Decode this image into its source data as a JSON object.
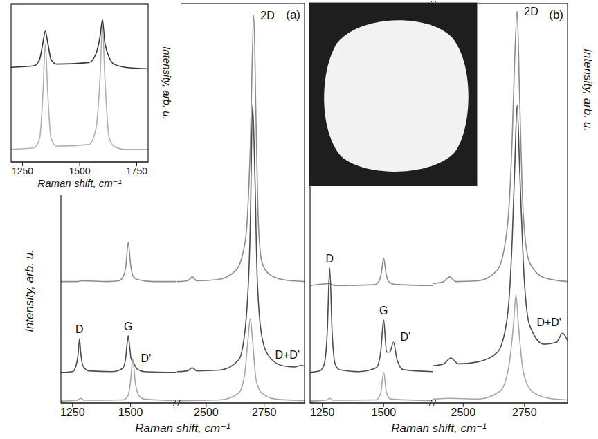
{
  "chart_data": [
    {
      "type": "line",
      "title": "(a)",
      "x_label": "Raman shift, cm⁻¹",
      "y_label": "Intensity, arb. u.",
      "xlim": [
        [
          1200,
          1700
        ],
        [
          2375,
          2925
        ]
      ],
      "xticks": [
        [
          1250,
          1500
        ],
        [
          2500,
          2750
        ]
      ],
      "ylim": [
        0,
        10.2
      ],
      "tick_labels": "x",
      "series": [
        {
          "color": "#8c8c8c",
          "x": [
            1200,
            1270,
            1290,
            1400,
            1450,
            1470,
            1480,
            1490,
            1500,
            1510,
            1530,
            1600,
            1700,
            2375,
            2420,
            2440,
            2460,
            2550,
            2630,
            2670,
            2690,
            2705,
            2715,
            2725,
            2740,
            2770,
            2830,
            2925
          ],
          "values": [
            3.1,
            3.1,
            3.12,
            3.1,
            3.12,
            3.25,
            3.5,
            4.1,
            3.55,
            3.25,
            3.15,
            3.1,
            3.1,
            3.1,
            3.12,
            3.22,
            3.12,
            3.15,
            3.4,
            4.2,
            6.5,
            9.9,
            7.2,
            4.6,
            3.6,
            3.3,
            3.15,
            3.1
          ],
          "annotations": [
            {
              "text": "2D",
              "x": 2705
            }
          ]
        },
        {
          "color": "#4d4d4d",
          "x": [
            1200,
            1250,
            1265,
            1275,
            1280,
            1285,
            1295,
            1320,
            1420,
            1465,
            1478,
            1485,
            1490,
            1495,
            1503,
            1515,
            1530,
            1560,
            1700,
            2375,
            2420,
            2440,
            2460,
            2560,
            2640,
            2670,
            2690,
            2700,
            2710,
            2720,
            2740,
            2770,
            2830,
            2880,
            2910,
            2925
          ],
          "values": [
            0.78,
            0.8,
            0.95,
            1.3,
            1.64,
            1.3,
            0.95,
            0.82,
            0.8,
            0.88,
            1.1,
            1.5,
            1.72,
            1.5,
            1.12,
            1.0,
            0.86,
            0.8,
            0.78,
            0.8,
            0.82,
            0.9,
            0.82,
            0.84,
            1.1,
            2.0,
            4.5,
            7.6,
            5.8,
            3.2,
            1.7,
            1.2,
            0.95,
            0.92,
            0.96,
            0.94
          ],
          "annotations": [
            {
              "text": "D",
              "x": 1280
            },
            {
              "text": "G",
              "x": 1490
            },
            {
              "text": "D'",
              "x": 1515
            },
            {
              "text": "D+D'",
              "x": 2910
            }
          ]
        },
        {
          "color": "#a6a6a6",
          "x": [
            1200,
            1270,
            1285,
            1300,
            1470,
            1490,
            1500,
            1510,
            1520,
            1535,
            1560,
            1700,
            2375,
            2560,
            2640,
            2665,
            2680,
            2690,
            2700,
            2715,
            2740,
            2800,
            2925
          ],
          "values": [
            0.05,
            0.07,
            0.12,
            0.07,
            0.08,
            0.2,
            0.55,
            1.12,
            0.55,
            0.2,
            0.1,
            0.06,
            0.06,
            0.08,
            0.25,
            0.7,
            1.6,
            2.15,
            1.6,
            0.6,
            0.25,
            0.1,
            0.06
          ]
        }
      ]
    },
    {
      "type": "line",
      "x_label": "Raman shift, cm⁻¹",
      "y_label": "Intensity, arb. u.",
      "xlim": [
        1200,
        1800
      ],
      "xticks": [
        1250,
        1500,
        1750
      ],
      "ylim": [
        0,
        10
      ],
      "tick_labels": "x",
      "series": [
        {
          "color": "#333333",
          "x": [
            1200,
            1300,
            1325,
            1340,
            1350,
            1360,
            1375,
            1400,
            1540,
            1570,
            1590,
            1600,
            1610,
            1620,
            1630,
            1650,
            1700,
            1800
          ],
          "values": [
            6.0,
            6.1,
            6.5,
            7.6,
            8.3,
            7.6,
            6.5,
            6.2,
            6.3,
            6.8,
            8.0,
            9.0,
            7.6,
            7.0,
            6.6,
            6.2,
            6.0,
            5.9
          ]
        },
        {
          "color": "#b0b0b0",
          "x": [
            1200,
            1300,
            1325,
            1340,
            1350,
            1360,
            1375,
            1400,
            1540,
            1570,
            1590,
            1600,
            1610,
            1630,
            1650,
            1700,
            1800
          ],
          "values": [
            0.8,
            0.9,
            1.5,
            4.5,
            7.5,
            4.5,
            1.5,
            1.0,
            1.1,
            2.0,
            5.5,
            8.7,
            5.5,
            1.5,
            1.0,
            0.8,
            0.8
          ]
        }
      ]
    },
    {
      "type": "line",
      "title": "(b)",
      "x_label": "Raman shift, cm⁻¹",
      "y_label": "Intensity, arb. u.",
      "xlim": [
        [
          1200,
          1700
        ],
        [
          2375,
          2925
        ]
      ],
      "xticks": [
        [
          1250,
          1500
        ],
        [
          2500,
          2750
        ]
      ],
      "ylim": [
        0,
        10.2
      ],
      "tick_labels": "x",
      "series": [
        {
          "color": "#8c8c8c",
          "x": [
            1200,
            1280,
            1300,
            1460,
            1480,
            1490,
            1500,
            1510,
            1520,
            1545,
            1700,
            2375,
            2420,
            2445,
            2470,
            2560,
            2640,
            2680,
            2700,
            2710,
            2720,
            2730,
            2745,
            2770,
            2830,
            2925
          ],
          "values": [
            3.0,
            3.05,
            3.0,
            3.02,
            3.1,
            3.3,
            3.7,
            3.3,
            3.1,
            3.03,
            3.0,
            3.05,
            3.1,
            3.22,
            3.1,
            3.12,
            3.4,
            4.5,
            6.8,
            8.8,
            10.0,
            7.8,
            4.8,
            3.6,
            3.2,
            3.1
          ],
          "annotations": [
            {
              "text": "2D",
              "x": 2720
            }
          ]
        },
        {
          "color": "#4d4d4d",
          "x": [
            1200,
            1240,
            1258,
            1270,
            1280,
            1290,
            1302,
            1320,
            1400,
            1470,
            1488,
            1500,
            1512,
            1525,
            1540,
            1555,
            1580,
            1700,
            2375,
            2420,
            2450,
            2480,
            2560,
            2640,
            2680,
            2700,
            2710,
            2720,
            2730,
            2745,
            2770,
            2830,
            2880,
            2905,
            2925
          ],
          "values": [
            0.78,
            0.82,
            1.0,
            1.8,
            3.45,
            1.8,
            1.0,
            0.85,
            0.8,
            0.9,
            1.3,
            2.12,
            1.3,
            1.3,
            1.55,
            1.1,
            0.85,
            0.8,
            0.95,
            1.0,
            1.15,
            1.0,
            1.05,
            1.3,
            2.2,
            4.2,
            6.0,
            7.6,
            6.0,
            3.6,
            2.0,
            1.5,
            1.55,
            1.78,
            1.6
          ],
          "annotations": [
            {
              "text": "D",
              "x": 1280
            },
            {
              "text": "G",
              "x": 1500
            },
            {
              "text": "D'",
              "x": 1540
            },
            {
              "text": "D+D'",
              "x": 2905
            }
          ]
        },
        {
          "color": "#a6a6a6",
          "x": [
            1200,
            1270,
            1280,
            1295,
            1470,
            1488,
            1500,
            1512,
            1530,
            1700,
            2375,
            2450,
            2560,
            2650,
            2685,
            2705,
            2715,
            2725,
            2745,
            2780,
            2850,
            2925
          ],
          "values": [
            0.05,
            0.08,
            0.12,
            0.07,
            0.08,
            0.25,
            0.78,
            0.25,
            0.1,
            0.06,
            0.1,
            0.12,
            0.1,
            0.3,
            0.9,
            2.0,
            2.76,
            2.0,
            0.8,
            0.3,
            0.12,
            0.08
          ]
        }
      ]
    }
  ]
}
